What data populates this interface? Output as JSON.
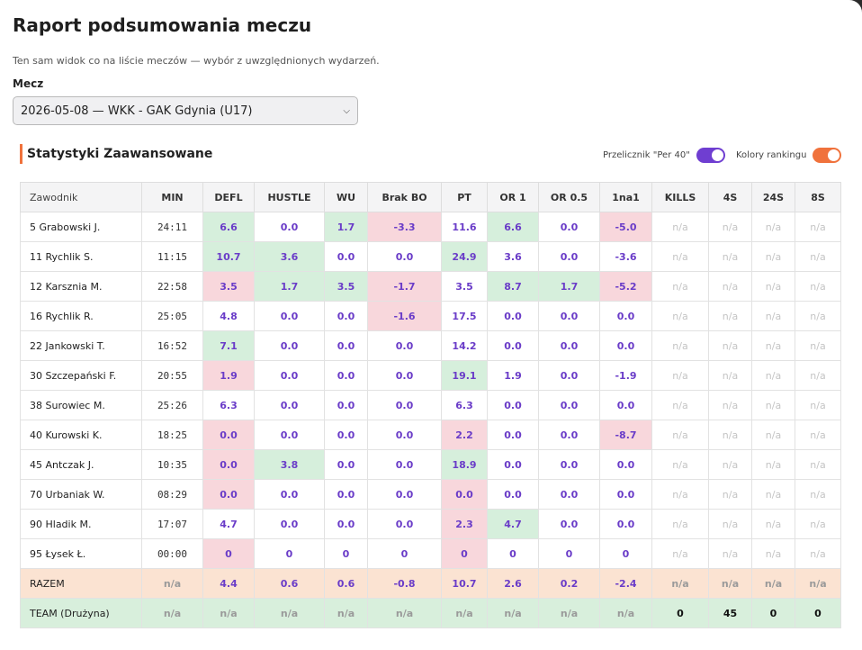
{
  "title": "Raport podsumowania meczu",
  "subtitle": "Ten sam widok co na liście meczów — wybór z uwzględnionych wydarzeń.",
  "match": {
    "label": "Mecz",
    "selected": "2026-05-08 — WKK - GAK Gdynia (U17)"
  },
  "section": {
    "title": "Statystyki Zaawansowane",
    "toggle_per40": "Przelicznik \"Per 40\"",
    "toggle_colors": "Kolory rankingu"
  },
  "table": {
    "headers": [
      "Zawodnik",
      "MIN",
      "DEFL",
      "HUSTLE",
      "WU",
      "Brak BO",
      "PT",
      "OR 1",
      "OR 0.5",
      "1na1",
      "KILLS",
      "4S",
      "24S",
      "8S"
    ],
    "rows": [
      {
        "cells": [
          "5 Grabowski J.",
          "24:11",
          "6.6",
          "0.0",
          "1.7",
          "-3.3",
          "11.6",
          "6.6",
          "0.0",
          "-5.0",
          "n/a",
          "n/a",
          "n/a",
          "n/a"
        ],
        "hl": [
          "",
          "",
          "g",
          "",
          "g",
          "r",
          "",
          "g",
          "",
          "r",
          "",
          "",
          "",
          ""
        ]
      },
      {
        "cells": [
          "11 Rychlik S.",
          "11:15",
          "10.7",
          "3.6",
          "0.0",
          "0.0",
          "24.9",
          "3.6",
          "0.0",
          "-3.6",
          "n/a",
          "n/a",
          "n/a",
          "n/a"
        ],
        "hl": [
          "",
          "",
          "g",
          "g",
          "",
          "",
          "g",
          "",
          "",
          "",
          "",
          "",
          "",
          ""
        ]
      },
      {
        "cells": [
          "12 Karsznia M.",
          "22:58",
          "3.5",
          "1.7",
          "3.5",
          "-1.7",
          "3.5",
          "8.7",
          "1.7",
          "-5.2",
          "n/a",
          "n/a",
          "n/a",
          "n/a"
        ],
        "hl": [
          "",
          "",
          "r",
          "g",
          "g",
          "r",
          "",
          "g",
          "g",
          "r",
          "",
          "",
          "",
          ""
        ]
      },
      {
        "cells": [
          "16 Rychlik R.",
          "25:05",
          "4.8",
          "0.0",
          "0.0",
          "-1.6",
          "17.5",
          "0.0",
          "0.0",
          "0.0",
          "n/a",
          "n/a",
          "n/a",
          "n/a"
        ],
        "hl": [
          "",
          "",
          "",
          "",
          "",
          "r",
          "",
          "",
          "",
          "",
          "",
          "",
          "",
          ""
        ]
      },
      {
        "cells": [
          "22 Jankowski T.",
          "16:52",
          "7.1",
          "0.0",
          "0.0",
          "0.0",
          "14.2",
          "0.0",
          "0.0",
          "0.0",
          "n/a",
          "n/a",
          "n/a",
          "n/a"
        ],
        "hl": [
          "",
          "",
          "g",
          "",
          "",
          "",
          "",
          "",
          "",
          "",
          "",
          "",
          "",
          ""
        ]
      },
      {
        "cells": [
          "30 Szczepański F.",
          "20:55",
          "1.9",
          "0.0",
          "0.0",
          "0.0",
          "19.1",
          "1.9",
          "0.0",
          "-1.9",
          "n/a",
          "n/a",
          "n/a",
          "n/a"
        ],
        "hl": [
          "",
          "",
          "r",
          "",
          "",
          "",
          "g",
          "",
          "",
          "",
          "",
          "",
          "",
          ""
        ]
      },
      {
        "cells": [
          "38 Surowiec M.",
          "25:26",
          "6.3",
          "0.0",
          "0.0",
          "0.0",
          "6.3",
          "0.0",
          "0.0",
          "0.0",
          "n/a",
          "n/a",
          "n/a",
          "n/a"
        ],
        "hl": [
          "",
          "",
          "",
          "",
          "",
          "",
          "",
          "",
          "",
          "",
          "",
          "",
          "",
          ""
        ]
      },
      {
        "cells": [
          "40 Kurowski K.",
          "18:25",
          "0.0",
          "0.0",
          "0.0",
          "0.0",
          "2.2",
          "0.0",
          "0.0",
          "-8.7",
          "n/a",
          "n/a",
          "n/a",
          "n/a"
        ],
        "hl": [
          "",
          "",
          "r",
          "",
          "",
          "",
          "r",
          "",
          "",
          "r",
          "",
          "",
          "",
          ""
        ]
      },
      {
        "cells": [
          "45 Antczak J.",
          "10:35",
          "0.0",
          "3.8",
          "0.0",
          "0.0",
          "18.9",
          "0.0",
          "0.0",
          "0.0",
          "n/a",
          "n/a",
          "n/a",
          "n/a"
        ],
        "hl": [
          "",
          "",
          "r",
          "g",
          "",
          "",
          "g",
          "",
          "",
          "",
          "",
          "",
          "",
          ""
        ]
      },
      {
        "cells": [
          "70 Urbaniak W.",
          "08:29",
          "0.0",
          "0.0",
          "0.0",
          "0.0",
          "0.0",
          "0.0",
          "0.0",
          "0.0",
          "n/a",
          "n/a",
          "n/a",
          "n/a"
        ],
        "hl": [
          "",
          "",
          "r",
          "",
          "",
          "",
          "r",
          "",
          "",
          "",
          "",
          "",
          "",
          ""
        ]
      },
      {
        "cells": [
          "90 Hladik M.",
          "17:07",
          "4.7",
          "0.0",
          "0.0",
          "0.0",
          "2.3",
          "4.7",
          "0.0",
          "0.0",
          "n/a",
          "n/a",
          "n/a",
          "n/a"
        ],
        "hl": [
          "",
          "",
          "",
          "",
          "",
          "",
          "r",
          "g",
          "",
          "",
          "",
          "",
          "",
          ""
        ]
      },
      {
        "cells": [
          "95 Łysek Ł.",
          "00:00",
          "0",
          "0",
          "0",
          "0",
          "0",
          "0",
          "0",
          "0",
          "n/a",
          "n/a",
          "n/a",
          "n/a"
        ],
        "hl": [
          "",
          "",
          "r",
          "",
          "",
          "",
          "r",
          "",
          "",
          "",
          "",
          "",
          "",
          ""
        ]
      }
    ],
    "razem": [
      "RAZEM",
      "n/a",
      "4.4",
      "0.6",
      "0.6",
      "-0.8",
      "10.7",
      "2.6",
      "0.2",
      "-2.4",
      "n/a",
      "n/a",
      "n/a",
      "n/a"
    ],
    "team": [
      "TEAM (Drużyna)",
      "n/a",
      "n/a",
      "n/a",
      "n/a",
      "n/a",
      "n/a",
      "n/a",
      "n/a",
      "n/a",
      "0",
      "45",
      "0",
      "0"
    ]
  },
  "colors": {
    "accent": "#f0723c",
    "purple": "#6f3ed1",
    "positive": "#d6efdc",
    "negative": "#f8d7dc"
  }
}
